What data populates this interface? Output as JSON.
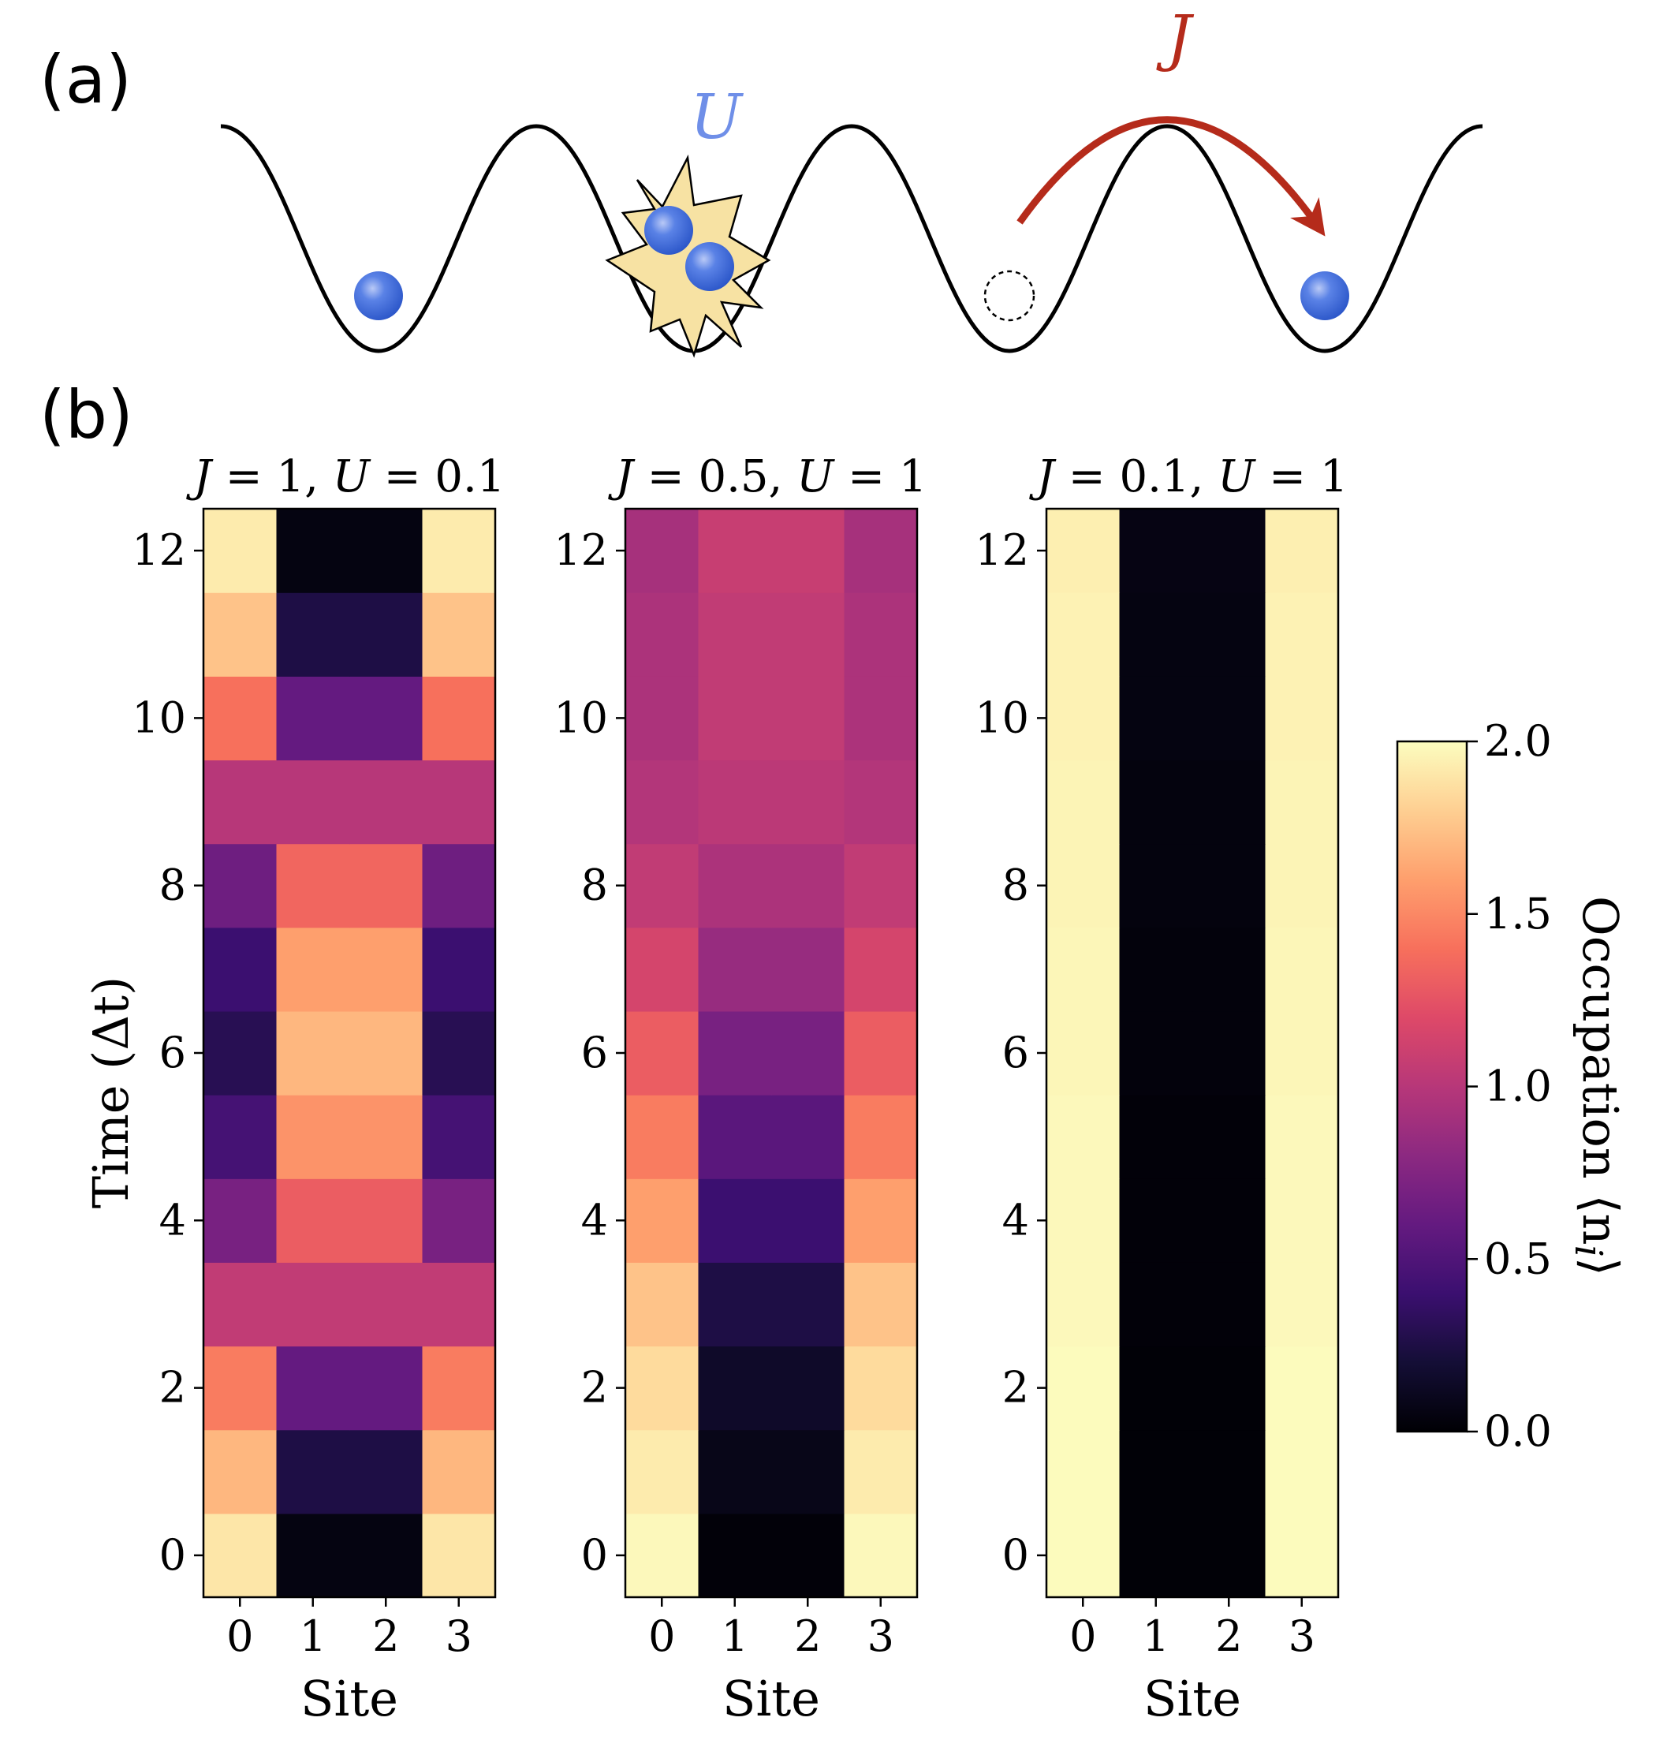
{
  "figure": {
    "panel_a_label": "(a)",
    "panel_b_label": "(b)",
    "schematic": {
      "u_label": "U",
      "j_label": "J",
      "u_color": "#6f8fe8",
      "j_color": "#b52b1b",
      "atom_color": "#3f6fe0",
      "burst_color": "#f7e2a3",
      "sites": [
        {
          "site": 0,
          "atoms": 1
        },
        {
          "site": 1,
          "atoms": 2
        },
        {
          "site": 2,
          "atoms": 0,
          "vacancy": true
        },
        {
          "site": 3,
          "atoms": 1
        }
      ]
    }
  },
  "chart_data": [
    {
      "type": "heatmap",
      "title": "J = 1, U = 0.1",
      "title_parts": {
        "j_sym": "J",
        "j_val": " = 1, ",
        "u_sym": "U",
        "u_val": " = 0.1"
      },
      "xlabel": "Site",
      "ylabel": "Time (Δt)",
      "x": [
        0,
        1,
        2,
        3
      ],
      "y": [
        0,
        1,
        2,
        3,
        4,
        5,
        6,
        7,
        8,
        9,
        10,
        11,
        12
      ],
      "xticks": [
        "0",
        "1",
        "2",
        "3"
      ],
      "yticks": [
        "0",
        "2",
        "4",
        "6",
        "8",
        "10",
        "12"
      ],
      "values": [
        [
          1.9,
          0.05,
          0.05,
          1.9
        ],
        [
          1.7,
          0.25,
          0.25,
          1.7
        ],
        [
          1.45,
          0.6,
          0.6,
          1.45
        ],
        [
          1.05,
          1.05,
          1.05,
          1.05
        ],
        [
          0.7,
          1.3,
          1.3,
          0.7
        ],
        [
          0.45,
          1.55,
          1.55,
          0.45
        ],
        [
          0.3,
          1.7,
          1.7,
          0.3
        ],
        [
          0.4,
          1.6,
          1.6,
          0.4
        ],
        [
          0.65,
          1.35,
          1.35,
          0.65
        ],
        [
          1.0,
          1.0,
          1.0,
          1.0
        ],
        [
          1.4,
          0.6,
          0.6,
          1.4
        ],
        [
          1.75,
          0.25,
          0.25,
          1.75
        ],
        [
          1.92,
          0.05,
          0.05,
          1.92
        ]
      ]
    },
    {
      "type": "heatmap",
      "title": "J = 0.5, U = 1",
      "title_parts": {
        "j_sym": "J",
        "j_val": " = 0.5, ",
        "u_sym": "U",
        "u_val": " = 1"
      },
      "xlabel": "Site",
      "x": [
        0,
        1,
        2,
        3
      ],
      "y": [
        0,
        1,
        2,
        3,
        4,
        5,
        6,
        7,
        8,
        9,
        10,
        11,
        12
      ],
      "xticks": [
        "0",
        "1",
        "2",
        "3"
      ],
      "yticks": [
        "0",
        "2",
        "4",
        "6",
        "8",
        "10",
        "12"
      ],
      "values": [
        [
          1.98,
          0.02,
          0.02,
          1.98
        ],
        [
          1.92,
          0.08,
          0.08,
          1.92
        ],
        [
          1.85,
          0.15,
          0.15,
          1.85
        ],
        [
          1.75,
          0.25,
          0.25,
          1.75
        ],
        [
          1.6,
          0.4,
          0.4,
          1.6
        ],
        [
          1.45,
          0.55,
          0.55,
          1.45
        ],
        [
          1.3,
          0.7,
          0.7,
          1.3
        ],
        [
          1.15,
          0.85,
          0.85,
          1.15
        ],
        [
          1.05,
          0.95,
          0.95,
          1.05
        ],
        [
          0.98,
          1.02,
          1.02,
          0.98
        ],
        [
          0.95,
          1.05,
          1.05,
          0.95
        ],
        [
          0.95,
          1.05,
          1.05,
          0.95
        ],
        [
          0.92,
          1.08,
          1.08,
          0.92
        ]
      ]
    },
    {
      "type": "heatmap",
      "title": "J = 0.1, U = 1",
      "title_parts": {
        "j_sym": "J",
        "j_val": " = 0.1, ",
        "u_sym": "U",
        "u_val": " = 1"
      },
      "xlabel": "Site",
      "x": [
        0,
        1,
        2,
        3
      ],
      "y": [
        0,
        1,
        2,
        3,
        4,
        5,
        6,
        7,
        8,
        9,
        10,
        11,
        12
      ],
      "xticks": [
        "0",
        "1",
        "2",
        "3"
      ],
      "yticks": [
        "0",
        "2",
        "4",
        "6",
        "8",
        "10",
        "12"
      ],
      "values": [
        [
          1.99,
          0.01,
          0.01,
          1.99
        ],
        [
          1.99,
          0.01,
          0.01,
          1.99
        ],
        [
          1.99,
          0.01,
          0.01,
          1.99
        ],
        [
          1.98,
          0.02,
          0.02,
          1.98
        ],
        [
          1.98,
          0.02,
          0.02,
          1.98
        ],
        [
          1.98,
          0.02,
          0.02,
          1.98
        ],
        [
          1.97,
          0.03,
          0.03,
          1.97
        ],
        [
          1.97,
          0.03,
          0.03,
          1.97
        ],
        [
          1.96,
          0.04,
          0.04,
          1.96
        ],
        [
          1.96,
          0.04,
          0.04,
          1.96
        ],
        [
          1.95,
          0.05,
          0.05,
          1.95
        ],
        [
          1.95,
          0.05,
          0.05,
          1.95
        ],
        [
          1.94,
          0.06,
          0.06,
          1.94
        ]
      ]
    }
  ],
  "colorbar": {
    "label": "Occupation ⟨n",
    "label_sub": "i",
    "label_end": "⟩",
    "range": [
      0.0,
      2.0
    ],
    "ticks": [
      0.0,
      0.5,
      1.0,
      1.5,
      2.0
    ],
    "tick_labels": [
      "0.0",
      "0.5",
      "1.0",
      "1.5",
      "2.0"
    ],
    "colormap": "magma"
  }
}
